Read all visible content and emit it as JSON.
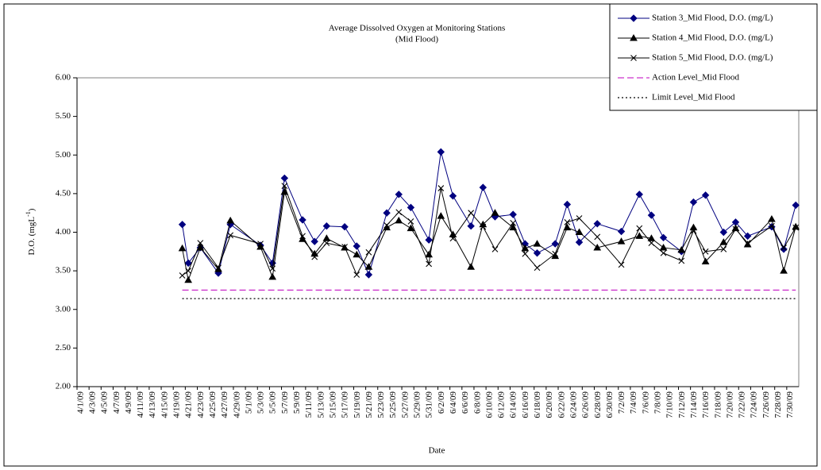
{
  "chart_data": {
    "type": "line",
    "title": "Average Dissolved Oxygen at Monitoring Stations",
    "subtitle": "(Mid Flood)",
    "x_label": "Date",
    "y_label": "D.O. (mgL",
    "y_label_sup": "-1",
    "y_label_end": ")",
    "categories": [
      "4/1/09",
      null,
      "4/3/09",
      null,
      "4/5/09",
      null,
      "4/7/09",
      null,
      "4/9/09",
      null,
      "4/11/09",
      null,
      "4/13/09",
      null,
      "4/15/09",
      null,
      "4/19/09",
      null,
      "4/21/09",
      null,
      "4/23/09",
      null,
      "4/25/09",
      null,
      "4/27/09",
      null,
      "4/29/09",
      null,
      "5/1/09",
      null,
      "5/3/09",
      null,
      "5/5/09",
      null,
      "5/7/09",
      null,
      "5/9/09",
      null,
      "5/11/09",
      null,
      "5/13/09",
      null,
      "5/15/09",
      null,
      "5/17/09",
      null,
      "5/19/09",
      null,
      "5/21/09",
      null,
      "5/23/09",
      null,
      "5/25/09",
      null,
      "5/27/09",
      null,
      "5/29/09",
      null,
      "5/31/09",
      null,
      "6/2/09",
      null,
      "6/4/09",
      null,
      "6/6/09",
      null,
      "6/8/09",
      null,
      "6/10/09",
      null,
      "6/12/09",
      null,
      "6/14/09",
      null,
      "6/16/09",
      null,
      "6/18/09",
      null,
      "6/20/09",
      null,
      "6/22/09",
      null,
      "6/24/09",
      null,
      "6/26/09",
      null,
      "6/28/09",
      null,
      "6/30/09",
      null,
      "7/2/09",
      null,
      "7/4/09",
      null,
      "7/6/09",
      null,
      "7/8/09",
      null,
      "7/10/09",
      null,
      "7/12/09",
      null,
      "7/14/09",
      null,
      "7/16/09",
      null,
      "7/18/09",
      null,
      "7/20/09",
      null,
      "7/22/09",
      null,
      "7/24/09",
      null,
      "7/26/09",
      null,
      "7/28/09",
      null,
      "7/30/09",
      null
    ],
    "x": [
      "4/20/09",
      "4/21/09",
      "4/23/09",
      "4/26/09",
      "4/28/09",
      "5/3/09",
      "5/5/09",
      "5/7/09",
      "5/10/09",
      "5/12/09",
      "5/14/09",
      "5/17/09",
      "5/19/09",
      "5/21/09",
      "5/24/09",
      "5/26/09",
      "5/28/09",
      "5/31/09",
      "6/2/09",
      "6/4/09",
      "6/7/09",
      "6/9/09",
      "6/11/09",
      "6/14/09",
      "6/16/09",
      "6/18/09",
      "6/21/09",
      "6/23/09",
      "6/25/09",
      "6/28/09",
      "7/2/09",
      "7/5/09",
      "7/7/09",
      "7/9/09",
      "7/12/09",
      "7/14/09",
      "7/16/09",
      "7/19/09",
      "7/21/09",
      "7/23/09",
      "7/27/09",
      "7/29/09",
      "7/31/09"
    ],
    "series": [
      {
        "name": "Station 3_Mid Flood, D.O. (mg/L)",
        "color": "#000080",
        "marker": "diamond",
        "values": [
          4.1,
          3.6,
          3.8,
          3.47,
          4.1,
          3.83,
          3.6,
          4.7,
          4.16,
          3.88,
          4.08,
          4.07,
          3.82,
          3.45,
          4.25,
          4.49,
          4.32,
          3.9,
          5.04,
          4.47,
          4.08,
          4.58,
          4.2,
          4.23,
          3.85,
          3.73,
          3.85,
          4.36,
          3.87,
          4.11,
          4.01,
          4.49,
          4.22,
          3.93,
          3.75,
          4.39,
          4.48,
          4.0,
          4.13,
          3.95,
          4.07,
          3.78,
          4.35
        ]
      },
      {
        "name": "Station 4_Mid Flood, D.O. (mg/L)",
        "color": "#000000",
        "marker": "triangle",
        "values": [
          3.79,
          3.38,
          3.8,
          3.52,
          4.15,
          3.81,
          3.42,
          4.52,
          3.91,
          3.72,
          3.92,
          3.8,
          3.71,
          3.55,
          4.06,
          4.15,
          4.05,
          3.71,
          4.21,
          3.97,
          3.55,
          4.1,
          4.25,
          4.06,
          3.79,
          3.85,
          3.69,
          4.06,
          4.0,
          3.8,
          3.88,
          3.95,
          3.92,
          3.8,
          3.77,
          4.06,
          3.62,
          3.87,
          4.05,
          3.84,
          4.17,
          3.5,
          4.07
        ]
      },
      {
        "name": "Station 5_Mid Flood, D.O. (mg/L)",
        "color": "#000000",
        "marker": "x",
        "values": [
          3.44,
          3.5,
          3.86,
          3.54,
          3.96,
          3.85,
          3.53,
          4.6,
          3.95,
          3.68,
          3.86,
          3.81,
          3.45,
          3.74,
          4.09,
          4.26,
          4.14,
          3.59,
          4.57,
          3.92,
          4.25,
          4.07,
          3.78,
          4.12,
          3.72,
          3.54,
          3.72,
          4.13,
          4.18,
          3.94,
          3.58,
          4.05,
          3.86,
          3.73,
          3.63,
          4.02,
          3.75,
          3.78,
          4.04,
          3.86,
          4.08,
          3.8,
          4.06
        ]
      }
    ],
    "reference_lines": [
      {
        "name": "Action Level_Mid Flood",
        "value": 3.25,
        "color": "#cc33cc",
        "style": "dashed"
      },
      {
        "name": "Limit Level_Mid Flood",
        "value": 3.14,
        "color": "#000000",
        "style": "dotted"
      }
    ],
    "ylim": [
      2,
      6
    ],
    "yticks": [
      {
        "value": 2,
        "label": "2.00"
      },
      {
        "value": 2.5,
        "label": "2.50"
      },
      {
        "value": 3,
        "label": "3.00"
      },
      {
        "value": 3.5,
        "label": "3.50"
      },
      {
        "value": 4,
        "label": "4.00"
      },
      {
        "value": 4.5,
        "label": "4.50"
      },
      {
        "value": 5,
        "label": "5.00"
      },
      {
        "value": 5.5,
        "label": "5.50"
      },
      {
        "value": 6,
        "label": "6.00"
      }
    ],
    "legend": "top-right"
  }
}
